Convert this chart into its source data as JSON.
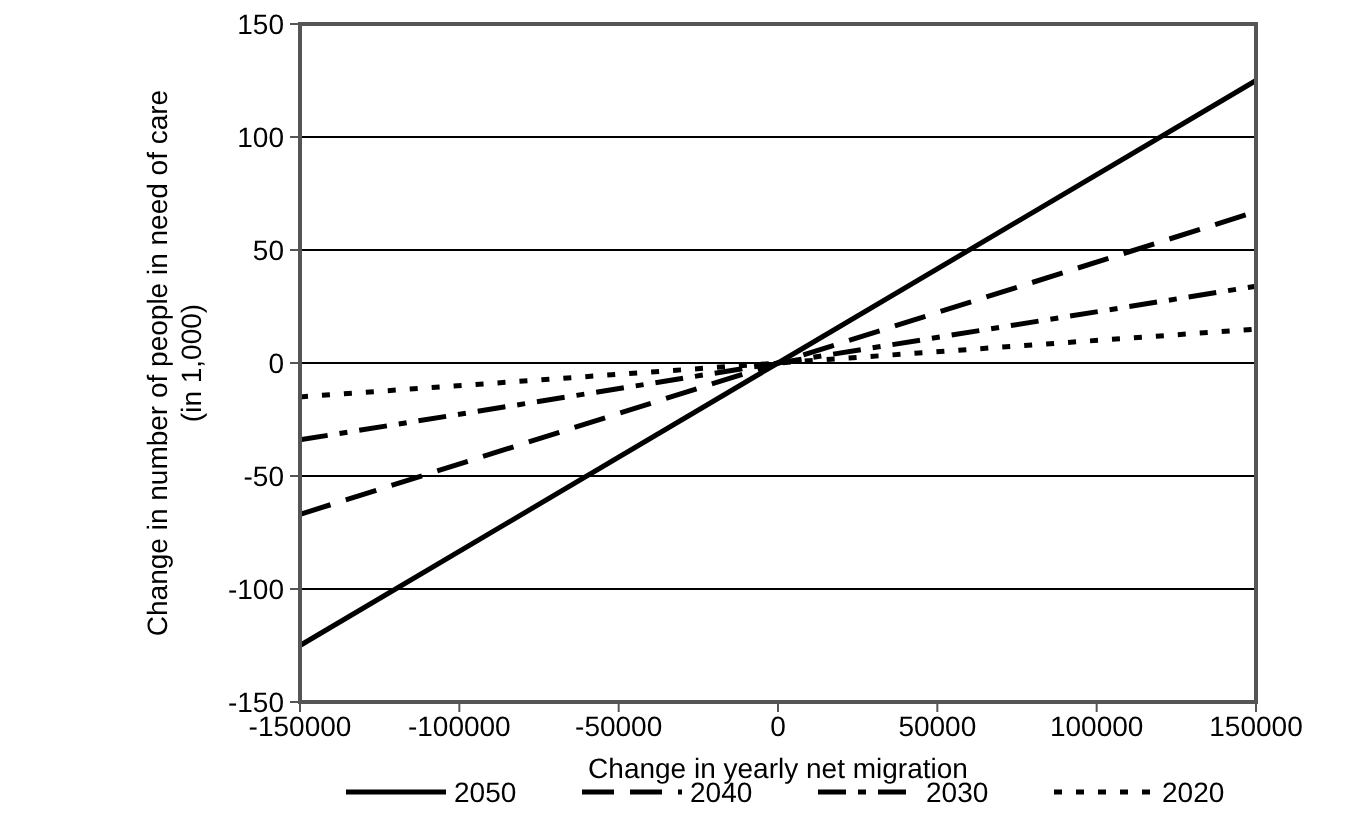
{
  "chart_data": {
    "type": "line",
    "xlabel": "Change in yearly net migration",
    "ylabel": "Change in number of people in need of care\n(in 1,000)",
    "x": [
      -150000,
      0,
      150000
    ],
    "series": [
      {
        "name": "2050",
        "color": "#000000",
        "values": [
          -125,
          0,
          125
        ],
        "line_style": "solid"
      },
      {
        "name": "2040",
        "color": "#000000",
        "values": [
          -67,
          0,
          67
        ],
        "line_style": "dashed"
      },
      {
        "name": "2030",
        "color": "#000000",
        "values": [
          -34,
          0,
          34
        ],
        "line_style": "dashdot"
      },
      {
        "name": "2020",
        "color": "#000000",
        "values": [
          -15,
          0,
          15
        ],
        "line_style": "dotted"
      }
    ],
    "xlim": [
      -150000,
      150000
    ],
    "xticks": [
      -150000,
      -100000,
      -50000,
      0,
      50000,
      100000,
      150000
    ],
    "ylim": [
      -150,
      150
    ],
    "yticks": [
      -150,
      -100,
      -50,
      0,
      50,
      100,
      150
    ],
    "grid": "y",
    "legend": "bottom"
  }
}
